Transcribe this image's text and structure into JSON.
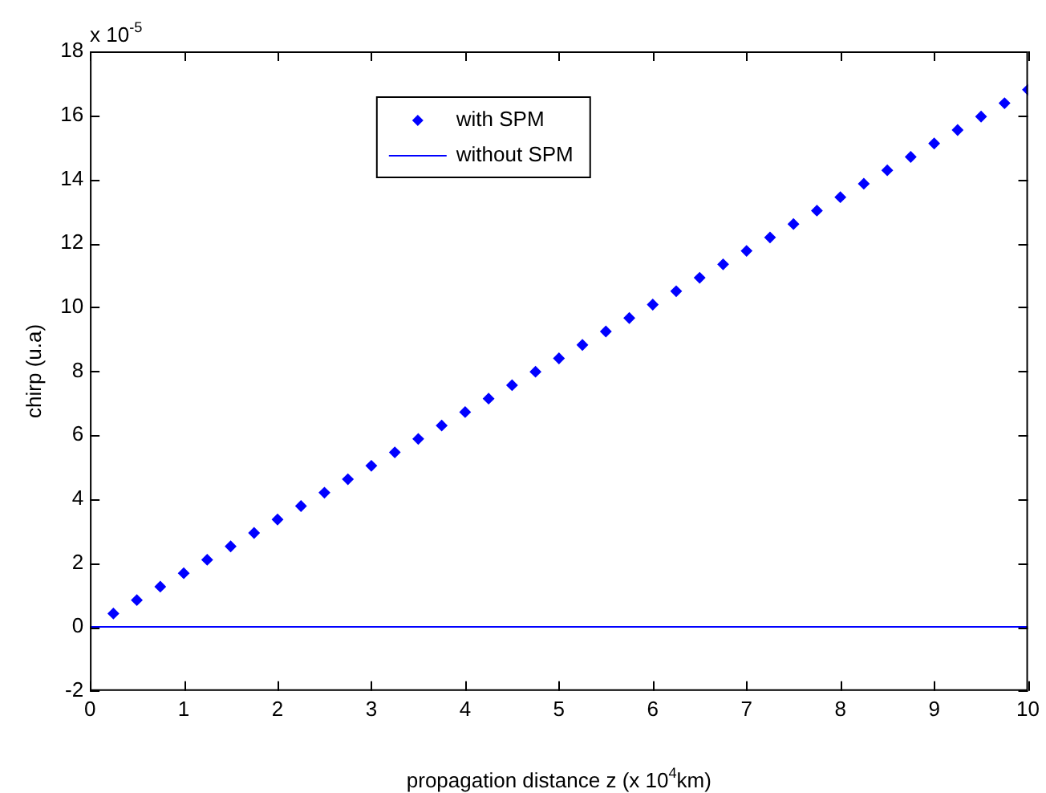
{
  "chart_data": {
    "type": "scatter",
    "xlabel": "propagation distance z (x 10$^{4}$km)",
    "ylabel": "chirp (u.a)",
    "annotations": [
      "x 10$^{-5}$"
    ],
    "xlim": [
      0,
      10
    ],
    "xticks": [
      0,
      1,
      2,
      3,
      4,
      5,
      6,
      7,
      8,
      9,
      10
    ],
    "ylim": [
      -2,
      18
    ],
    "yticks": [
      -2,
      0,
      2,
      4,
      6,
      8,
      10,
      12,
      14,
      16,
      18
    ],
    "grid": false,
    "legend": "top",
    "series": [
      {
        "name": "with SPM",
        "marker": "diamond",
        "color": "#0000ff",
        "x": [
          0.25,
          0.5,
          0.75,
          1,
          1.25,
          1.5,
          1.75,
          2,
          2.25,
          2.5,
          2.75,
          3,
          3.25,
          3.5,
          3.75,
          4,
          4.25,
          4.5,
          4.75,
          5,
          5.25,
          5.5,
          5.75,
          6,
          6.25,
          6.5,
          6.75,
          7,
          7.25,
          7.5,
          7.75,
          8,
          8.25,
          8.5,
          8.75,
          9,
          9.25,
          9.5,
          9.75,
          10
        ],
        "values": [
          0.42,
          0.84,
          1.26,
          1.68,
          2.1,
          2.52,
          2.94,
          3.36,
          3.78,
          4.2,
          4.62,
          5.04,
          5.46,
          5.88,
          6.3,
          6.72,
          7.14,
          7.56,
          7.98,
          8.4,
          8.82,
          9.24,
          9.66,
          10.08,
          10.5,
          10.92,
          11.34,
          11.76,
          12.18,
          12.6,
          13.02,
          13.44,
          13.86,
          14.28,
          14.7,
          15.12,
          15.54,
          15.96,
          16.38,
          16.8
        ]
      },
      {
        "name": "without SPM",
        "type": "line",
        "marker": "none",
        "line_style": "solid",
        "color": "#0000ff",
        "x": [
          0,
          10
        ],
        "values": [
          0,
          0
        ]
      }
    ]
  }
}
